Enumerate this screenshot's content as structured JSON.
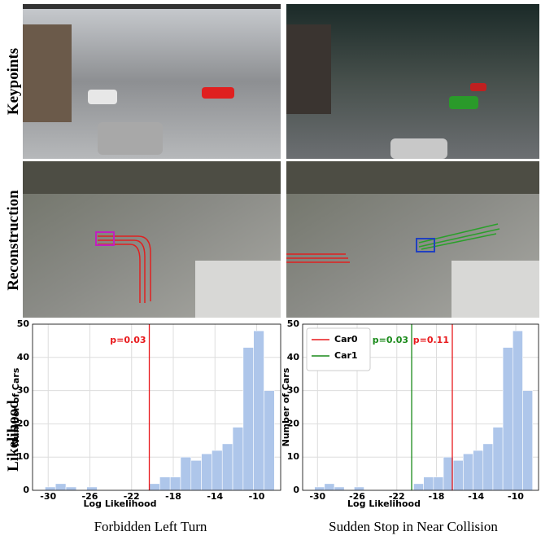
{
  "row_labels": [
    "Keypoints",
    "Reconstruction",
    "Likelihood"
  ],
  "captions": [
    "Forbidden Left Turn",
    "Sudden Stop in Near Collision"
  ],
  "chart_data": [
    {
      "type": "histogram",
      "xlabel": "Log Likelihood",
      "ylabel": "Number of Cars",
      "bins": [
        -30.3,
        -29.3,
        -28.3,
        -27.3,
        -26.3,
        -25.3,
        -24.3,
        -23.3,
        -22.3,
        -21.3,
        -20.3,
        -19.3,
        -18.3,
        -17.3,
        -16.3,
        -15.3,
        -14.3,
        -13.3,
        -12.3,
        -11.3,
        -10.3,
        -9.3,
        -8.3
      ],
      "counts": [
        1,
        2,
        1,
        0,
        1,
        0,
        0,
        0,
        0,
        0,
        2,
        4,
        4,
        10,
        9,
        11,
        12,
        14,
        19,
        43,
        48,
        30
      ],
      "color": "#aec6ea",
      "xlim": [
        -31.5,
        -7.7
      ],
      "ylim": [
        0,
        50
      ],
      "xticks": [
        -30,
        -26,
        -22,
        -18,
        -14,
        -10
      ],
      "yticks": [
        0,
        10,
        20,
        30,
        40,
        50
      ],
      "grid": true,
      "vlines": [
        {
          "value": -20.3,
          "label": "p=0.03",
          "color": "#e8191c"
        }
      ]
    },
    {
      "type": "histogram",
      "xlabel": "Log Likelihood",
      "ylabel": "Number of Cars",
      "bins": [
        -30.3,
        -29.3,
        -28.3,
        -27.3,
        -26.3,
        -25.3,
        -24.3,
        -23.3,
        -22.3,
        -21.3,
        -20.3,
        -19.3,
        -18.3,
        -17.3,
        -16.3,
        -15.3,
        -14.3,
        -13.3,
        -12.3,
        -11.3,
        -10.3,
        -9.3,
        -8.3
      ],
      "counts": [
        1,
        2,
        1,
        0,
        1,
        0,
        0,
        0,
        0,
        0,
        2,
        4,
        4,
        10,
        9,
        11,
        12,
        14,
        19,
        43,
        48,
        30
      ],
      "color": "#aec6ea",
      "xlim": [
        -31.5,
        -7.7
      ],
      "ylim": [
        0,
        50
      ],
      "xticks": [
        -30,
        -26,
        -22,
        -18,
        -14,
        -10
      ],
      "yticks": [
        0,
        10,
        20,
        30,
        40,
        50
      ],
      "grid": true,
      "legend": "upper left",
      "vlines": [
        {
          "name": "Car0",
          "value": -16.4,
          "label": "p=0.11",
          "color": "#e8191c"
        },
        {
          "name": "Car1",
          "value": -20.5,
          "label": "p=0.03",
          "color": "#1a8a1a"
        }
      ]
    }
  ]
}
